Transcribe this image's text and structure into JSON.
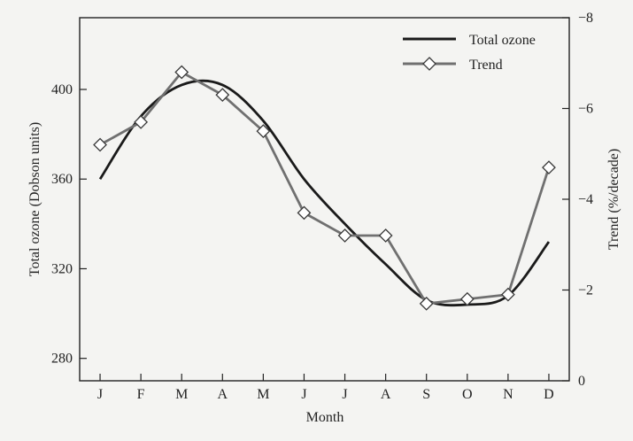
{
  "chart_data": {
    "type": "line",
    "xlabel": "Month",
    "ylabel": "Total ozone (Dobson units)",
    "y2label": "Trend (%/decade)",
    "categories": [
      "J",
      "F",
      "M",
      "A",
      "M",
      "J",
      "J",
      "A",
      "S",
      "O",
      "N",
      "D"
    ],
    "yticks": [
      280,
      320,
      360,
      400
    ],
    "y2ticks": [
      "0",
      "−2",
      "−4",
      "−6",
      "−8"
    ],
    "ylim": [
      270,
      432
    ],
    "y2lim": [
      0,
      -8
    ],
    "legend_position": "top-right",
    "colors": {
      "total_ozone": "#1a1a1a",
      "trend": "#707070",
      "frame": "#222222"
    },
    "series": [
      {
        "name": "Total ozone",
        "axis": "left",
        "style": "smooth-line",
        "values": [
          360,
          388,
          402,
          402,
          386,
          360,
          340,
          322,
          306,
          304,
          308,
          332
        ]
      },
      {
        "name": "Trend",
        "axis": "right",
        "style": "line-diamond-markers",
        "values": [
          -5.2,
          -5.7,
          -6.8,
          -6.3,
          -5.5,
          -3.7,
          -3.2,
          -3.2,
          -1.7,
          -1.8,
          -1.9,
          -4.7
        ]
      }
    ]
  }
}
